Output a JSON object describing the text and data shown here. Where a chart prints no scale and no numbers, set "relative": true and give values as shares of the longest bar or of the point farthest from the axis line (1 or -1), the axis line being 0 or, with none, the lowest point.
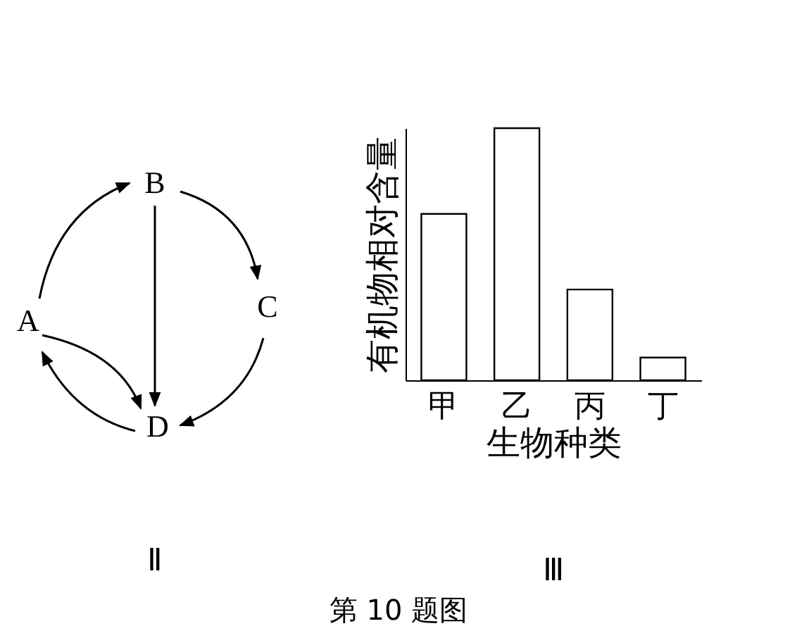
{
  "chart_data": [
    {
      "type": "other",
      "title": "Ⅱ",
      "annotations": [
        "A",
        "B",
        "C",
        "D"
      ]
    },
    {
      "type": "bar",
      "title": "Ⅲ",
      "xlabel": "生物种类",
      "ylabel": "有机物相对含量",
      "relative": true,
      "categories": [
        "甲",
        "乙",
        "丙",
        "丁"
      ],
      "values": [
        0.66,
        1,
        0.36,
        0.09
      ],
      "color": "#ffffff",
      "grid": false,
      "annotations": [
        "第 10 题图"
      ]
    }
  ]
}
